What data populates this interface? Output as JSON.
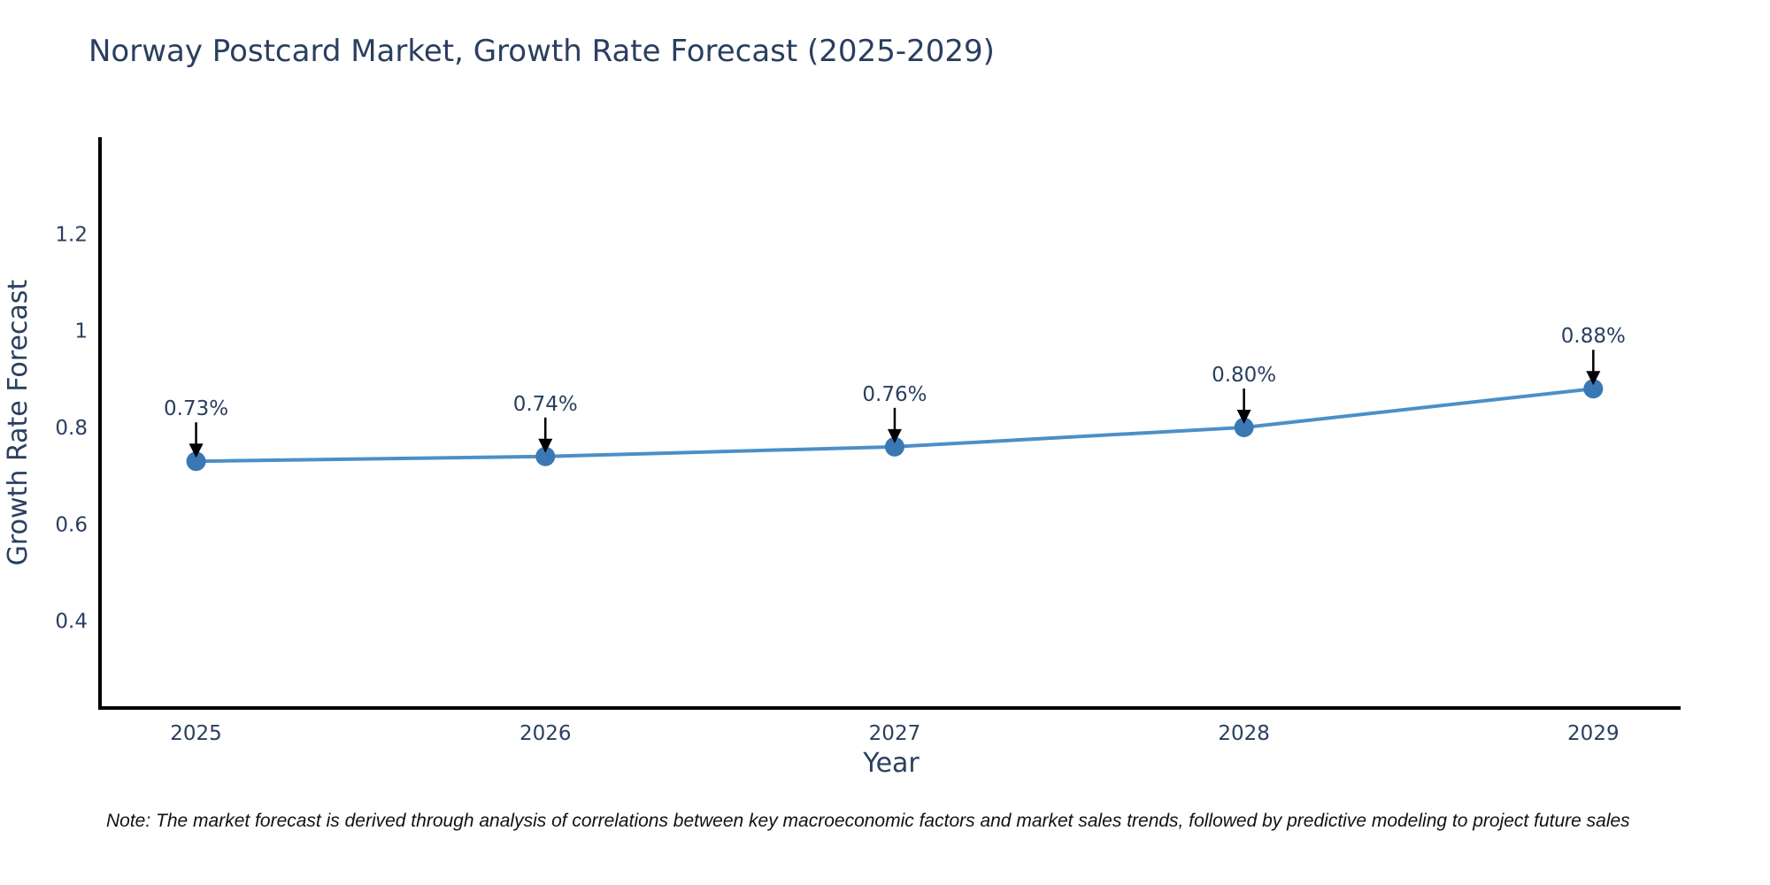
{
  "title": "Norway Postcard Market, Growth Rate Forecast (2025-2029)",
  "note": "Note: The market forecast is derived through analysis of correlations between key macroeconomic factors and market sales trends, followed by predictive modeling to project future sales",
  "colors": {
    "title_text": "#2a3f5f",
    "tick_text": "#2a3f5f",
    "axis_line": "#000000",
    "series_line": "#4c8fc7",
    "marker_fill": "#3a78b4",
    "annotation_arrow": "#000000",
    "background": "#ffffff"
  },
  "chart_data": {
    "type": "line",
    "title": "Norway Postcard Market, Growth Rate Forecast (2025-2029)",
    "xlabel": "Year",
    "ylabel": "Growth Rate Forecast",
    "x": [
      2025,
      2026,
      2027,
      2028,
      2029
    ],
    "values": [
      0.73,
      0.74,
      0.76,
      0.8,
      0.88
    ],
    "point_labels": [
      "0.73%",
      "0.74%",
      "0.76%",
      "0.80%",
      "0.88%"
    ],
    "xticks": [
      2025,
      2026,
      2027,
      2028,
      2029
    ],
    "xtick_labels": [
      "2025",
      "2026",
      "2027",
      "2028",
      "2029"
    ],
    "yticks": [
      0.4,
      0.6,
      0.8,
      1.0,
      1.2
    ],
    "ytick_labels": [
      "0.4",
      "0.6",
      "0.8",
      "1",
      "1.2"
    ],
    "xlim": [
      2024.73,
      2029.25
    ],
    "ylim": [
      0.22,
      1.4
    ],
    "grid": false,
    "legend_position": "none",
    "marker_size": 11,
    "line_width": 4
  }
}
